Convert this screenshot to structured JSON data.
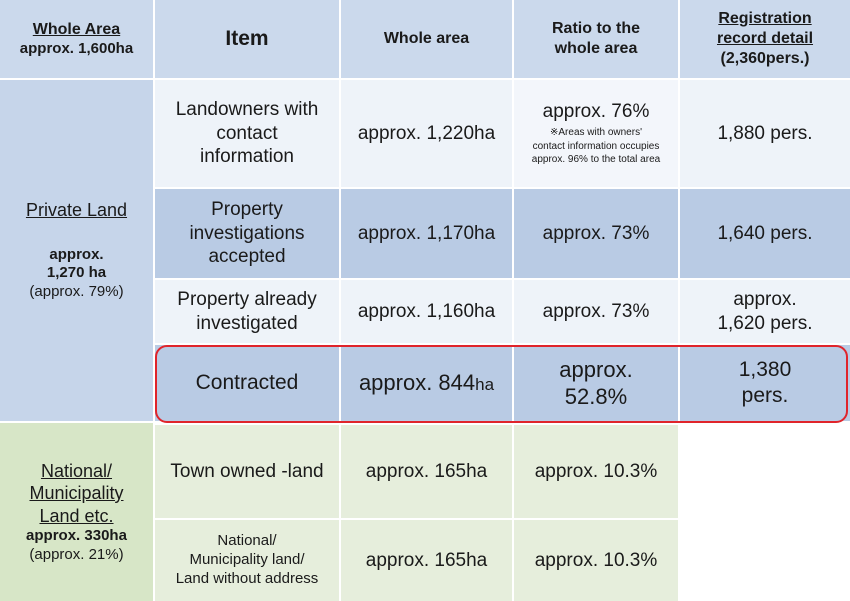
{
  "header": {
    "whole_area_title": "Whole Area",
    "whole_area_value": "approx. 1,600ha",
    "item": "Item",
    "whole_area": "Whole area",
    "ratio_line1": "Ratio to the",
    "ratio_line2": "whole area",
    "reg_line1": "Registration",
    "reg_line2": "record detail",
    "reg_line3": "(2,360pers.)"
  },
  "private_land": {
    "title": "Private Land",
    "area_line1": "approx.",
    "area_line2": "1,270 ha",
    "ratio": "(approx. 79%)"
  },
  "national_land": {
    "title_line1": "National/",
    "title_line2": "Municipality",
    "title_line3": "Land etc.",
    "area": "approx. 330ha",
    "ratio": "(approx. 21%)"
  },
  "rows": [
    {
      "item_lines": [
        "Landowners with",
        "contact",
        "information"
      ],
      "area": "approx. 1,220ha",
      "ratio": "approx. 76%",
      "ratio_note": [
        "※Areas with owners'",
        "contact information occupies",
        "approx. 96% to the total area"
      ],
      "reg": "1,880 pers."
    },
    {
      "item_lines": [
        "Property",
        "investigations",
        "accepted"
      ],
      "area": "approx. 1,170ha",
      "ratio": "approx. 73%",
      "reg": "1,640 pers."
    },
    {
      "item_lines": [
        "Property already",
        "investigated"
      ],
      "area": "approx. 1,160ha",
      "ratio": "approx. 73%",
      "reg_lines": [
        "approx.",
        "1,620 pers."
      ]
    },
    {
      "item": "Contracted",
      "area_main": "approx. 844",
      "area_unit": "ha",
      "ratio_lines": [
        "approx.",
        "52.8%"
      ],
      "reg_lines": [
        "1,380",
        "pers."
      ]
    },
    {
      "item": "Town owned -land",
      "area": "approx. 165ha",
      "ratio": "approx. 10.3%"
    },
    {
      "item_lines": [
        "National/",
        "Municipality land/",
        "Land without address"
      ],
      "area": "approx. 165ha",
      "ratio": "approx. 10.3%"
    }
  ],
  "colors": {
    "header_bg": "#cbd9ec",
    "private_bg": "#c6d5ea",
    "green_bg": "#d7e6c7",
    "highlight_border": "#e0242b"
  }
}
